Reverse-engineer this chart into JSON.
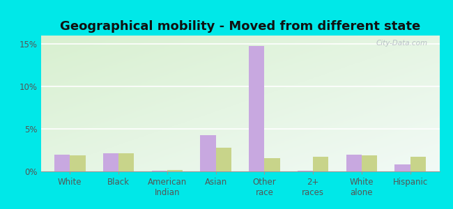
{
  "title": "Geographical mobility - Moved from different state",
  "categories": [
    "White",
    "Black",
    "American\nIndian",
    "Asian",
    "Other\nrace",
    "2+\nraces",
    "White\nalone",
    "Hispanic"
  ],
  "toms_river": [
    2.0,
    2.1,
    0.07,
    4.3,
    14.8,
    0.07,
    2.0,
    0.8
  ],
  "new_jersey": [
    1.9,
    2.1,
    0.2,
    2.8,
    1.6,
    1.7,
    1.9,
    1.7
  ],
  "bar_color_toms": "#c8a8e0",
  "bar_color_nj": "#c8d48a",
  "figure_bg": "#00e8e8",
  "plot_bg_top_left": "#d8f0d0",
  "plot_bg_bottom_right": "#f0faf8",
  "ylim": [
    0,
    16
  ],
  "yticks": [
    0,
    5,
    10,
    15
  ],
  "ytick_labels": [
    "0%",
    "5%",
    "10%",
    "15%"
  ],
  "title_fontsize": 13,
  "tick_fontsize": 8.5,
  "legend_fontsize": 9.5,
  "watermark": "City-Data.com"
}
